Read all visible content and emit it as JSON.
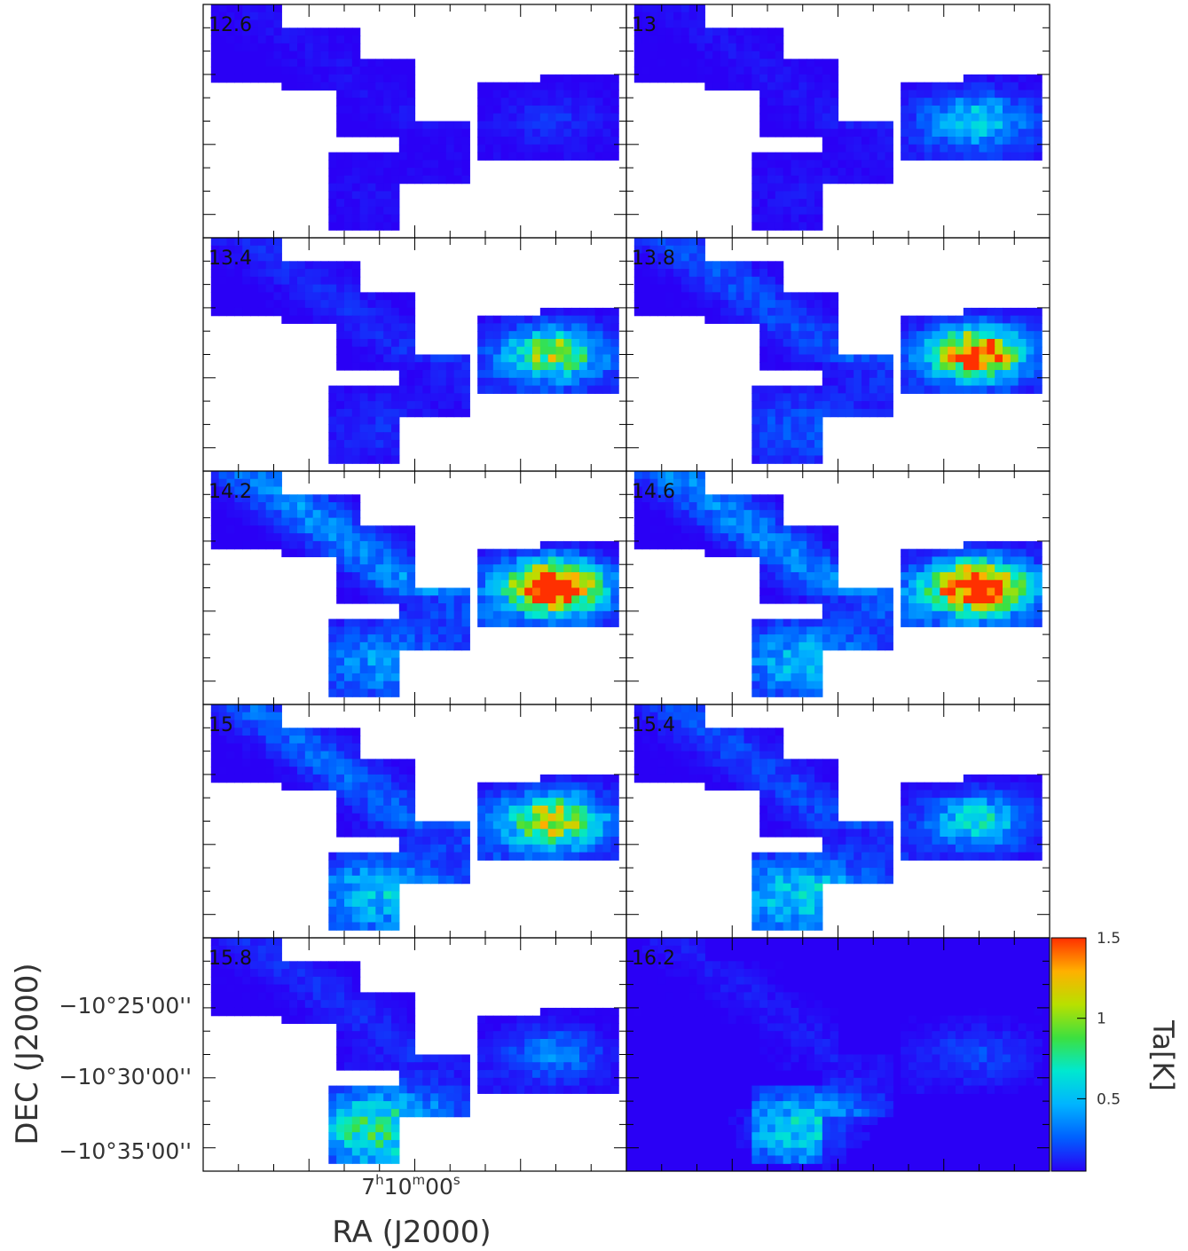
{
  "chart_data": {
    "type": "heatmap",
    "panels": [
      {
        "label": "12.6",
        "peak": 0.05,
        "east": 0.08,
        "south": 0.04,
        "nw": 0.05
      },
      {
        "label": "13",
        "peak": 0.3,
        "east": 0.32,
        "south": 0.05,
        "nw": 0.06
      },
      {
        "label": "13.4",
        "peak": 0.72,
        "east": 0.4,
        "south": 0.1,
        "nw": 0.12
      },
      {
        "label": "13.8",
        "peak": 1.3,
        "east": 0.45,
        "south": 0.2,
        "nw": 0.22
      },
      {
        "label": "14.2",
        "peak": 1.35,
        "east": 0.65,
        "south": 0.35,
        "nw": 0.4
      },
      {
        "label": "14.6",
        "peak": 1.3,
        "east": 0.75,
        "south": 0.45,
        "nw": 0.38
      },
      {
        "label": "15",
        "peak": 0.75,
        "east": 0.55,
        "south": 0.5,
        "nw": 0.28
      },
      {
        "label": "15.4",
        "peak": 0.4,
        "east": 0.3,
        "south": 0.55,
        "nw": 0.2
      },
      {
        "label": "15.8",
        "peak": 0.2,
        "east": 0.15,
        "south": 0.75,
        "nw": 0.12
      },
      {
        "label": "16.2",
        "peak": 0.1,
        "east": 0.1,
        "south": 0.55,
        "nw": 0.08
      }
    ],
    "y_ticks": [
      "−10°25'00''",
      "−10°30'00''",
      "−10°35'00''"
    ],
    "x_tick_hour": "7",
    "x_tick_min": "10",
    "x_tick_sec": "00",
    "x_unit_h": "h",
    "x_unit_m": "m",
    "x_unit_s": "s",
    "xlabel": "RA (J2000)",
    "ylabel": "DEC (J2000)",
    "colorbar": {
      "label": "Ta[K]",
      "ticks": [
        {
          "value": 0.5,
          "text": "0.5"
        },
        {
          "value": 1.0,
          "text": "1"
        },
        {
          "value": 1.5,
          "text": "1.5"
        }
      ],
      "min": 0.05,
      "max": 1.5,
      "colors": [
        "#2a00f5",
        "#0060ff",
        "#00b4ff",
        "#00e8d0",
        "#3ce040",
        "#b8e000",
        "#ffb000",
        "#ff3000"
      ]
    }
  }
}
